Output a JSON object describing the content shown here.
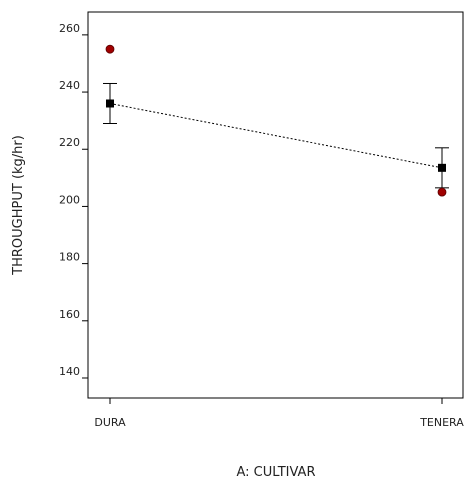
{
  "chart_data": {
    "type": "scatter",
    "title": "",
    "xlabel": "A: CULTIVAR",
    "ylabel": "THROUGHPUT (kg/hr)",
    "categories": [
      "DURA",
      "TENERA"
    ],
    "ylim": [
      133,
      268
    ],
    "yticks": [
      140,
      160,
      180,
      200,
      220,
      240,
      260
    ],
    "grid": false,
    "legend": "none",
    "series": [
      {
        "kind": "mean-with-error-bars",
        "values": [
          236,
          213.5
        ],
        "error_low": [
          229,
          206.5
        ],
        "error_high": [
          243,
          220.5
        ],
        "connector": "dotted",
        "color": "#000000"
      },
      {
        "kind": "observed-points",
        "values": [
          255,
          205
        ],
        "color": "#a00000"
      }
    ]
  }
}
